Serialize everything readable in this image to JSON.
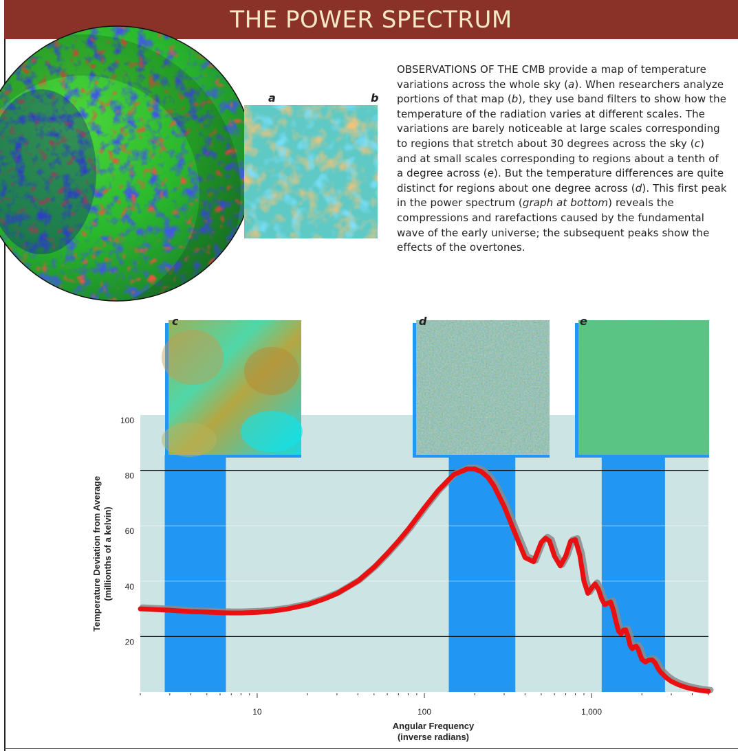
{
  "header": {
    "title": "THE POWER SPECTRUM"
  },
  "caption": {
    "lead": "OBSERVATIONS OF THE CMB",
    "p1": " provide a map of temperature variations across the whole sky (",
    "a": "a",
    "p2": "). When researchers analyze portions of that map (",
    "b": "b",
    "p3": "), they use band filters to show how the temperature of the radiation varies at different scales. The variations are barely noticeable at large scales corresponding to regions that stretch about 30 degrees across the sky (",
    "c": "c",
    "p4": ") and at small scales corresponding to regions about a tenth of a degree across (",
    "e": "e",
    "p5": "). But the temperature differences are quite distinct for regions about one degree across (",
    "d": "d",
    "p6": "). This first peak in the power spectrum (",
    "graph": "graph at bottom",
    "p7": ") reveals the compressions and rarefactions caused by the fundamental wave of the early universe; the subsequent peaks show the effects of the overtones."
  },
  "panels": {
    "a": "a",
    "b": "b",
    "c": "c",
    "d": "d",
    "e": "e"
  },
  "colors": {
    "title_bg": "#8a3128",
    "plot_bg": "#cde4e4",
    "band": "#2196f3",
    "curve": "#e81010",
    "curve_shadow": "#8a8a8a"
  },
  "chart_data": {
    "type": "line",
    "xscale": "log",
    "xlabel": "Angular Frequency",
    "xlabel_sub": "(inverse radians)",
    "ylabel": "Temperature Deviation from Average",
    "ylabel_sub": "(millionths of a kelvin)",
    "xlim": [
      2,
      5000
    ],
    "ylim": [
      0,
      100
    ],
    "x_ticks": [
      10,
      100,
      1000
    ],
    "x_tick_labels": [
      "10",
      "100",
      "1,000"
    ],
    "y_ticks": [
      20,
      40,
      60,
      80,
      100
    ],
    "y_tick_labels": [
      "20",
      "40",
      "60",
      "80",
      "100"
    ],
    "reference_lines": [
      80,
      20
    ],
    "bands": [
      {
        "label": "c",
        "x": [
          2.8,
          6.5
        ]
      },
      {
        "label": "d",
        "x": [
          140,
          350
        ]
      },
      {
        "label": "e",
        "x": [
          1150,
          2750
        ]
      }
    ],
    "series": [
      {
        "x": [
          2,
          3,
          4,
          5,
          6,
          7,
          8,
          10,
          12,
          15,
          20,
          25,
          30,
          40,
          50,
          60,
          70,
          80,
          100,
          120,
          150,
          180,
          200,
          220,
          240,
          260,
          300,
          350,
          400,
          450,
          500,
          530,
          560,
          600,
          650,
          700,
          750,
          800,
          850,
          900,
          950,
          1000,
          1050,
          1100,
          1150,
          1200,
          1250,
          1300,
          1350,
          1400,
          1450,
          1500,
          1550,
          1600,
          1650,
          1700,
          1750,
          1800,
          1850,
          1900,
          1950,
          2000,
          2100,
          2200,
          2300,
          2400,
          2500,
          2600,
          2800,
          3000,
          3300,
          3600,
          4000,
          4500,
          5000
        ],
        "y": [
          30,
          29.5,
          29,
          28.8,
          28.6,
          28.5,
          28.5,
          28.7,
          29.1,
          29.9,
          31.5,
          33.5,
          35.5,
          40,
          45,
          50,
          54.5,
          58.7,
          66.5,
          72.5,
          78.5,
          80.5,
          80.5,
          79.5,
          77.5,
          74.5,
          67,
          57,
          48.5,
          47,
          54,
          55.5,
          54.5,
          49,
          45.5,
          49,
          54.5,
          55,
          49.5,
          40,
          35.6,
          37.5,
          39,
          37,
          33.6,
          31.5,
          32,
          32.5,
          29.5,
          25.4,
          22,
          21,
          22.3,
          22.4,
          20.2,
          16.8,
          15.6,
          16.2,
          16.5,
          15.4,
          13.4,
          11.7,
          10.8,
          11.5,
          11.6,
          10.5,
          8.4,
          7,
          5.1,
          3.8,
          2.6,
          1.8,
          1.1,
          0.5,
          0.2
        ]
      }
    ]
  }
}
